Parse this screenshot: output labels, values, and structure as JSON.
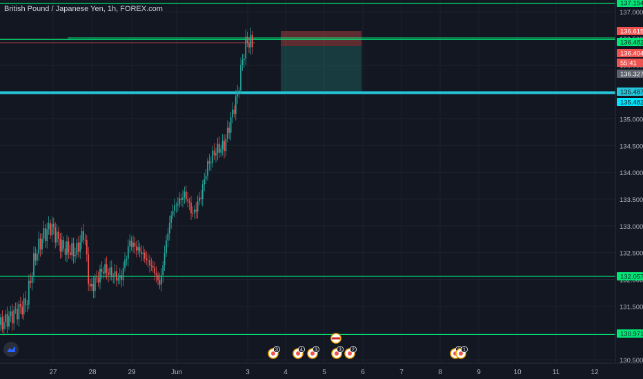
{
  "chart": {
    "title": "British Pound / Japanese Yen, 1h, FOREX.com",
    "y_ticks": [
      "137.000",
      "136.500",
      "136.000",
      "135.500",
      "135.000",
      "134.500",
      "134.000",
      "133.500",
      "133.000",
      "132.500",
      "132.000",
      "131.500",
      "131.000",
      "130.500"
    ],
    "x_ticks": [
      "27",
      "28",
      "29",
      "Jun",
      "3",
      "4",
      "5",
      "6",
      "7",
      "8",
      "9",
      "10",
      "11",
      "12"
    ],
    "price_labels": [
      {
        "text": "137.154",
        "value": 137.154,
        "bg": "#00e676",
        "fg": "#131722"
      },
      {
        "text": "136.615",
        "value": 136.615,
        "bg": "#ef5350",
        "fg": "#ffffff"
      },
      {
        "text": "136.482",
        "value": 136.482,
        "bg": "#00e676",
        "fg": "#131722"
      },
      {
        "text": "136.404",
        "value": 136.404,
        "bg": "#ef5350",
        "fg": "#ffffff"
      },
      {
        "text": "55:41",
        "value": 136.29,
        "bg": "#ef5350",
        "fg": "#ffffff"
      },
      {
        "text": "136.327",
        "value": 136.327,
        "bg": "#5d606b",
        "fg": "#ffffff"
      },
      {
        "text": "135.487",
        "value": 135.487,
        "bg": "#26c6da",
        "fg": "#131722"
      },
      {
        "text": "135.482",
        "value": 135.482,
        "bg": "#00e5ff",
        "fg": "#131722"
      },
      {
        "text": "132.057",
        "value": 132.057,
        "bg": "#00e676",
        "fg": "#131722"
      },
      {
        "text": "130.971",
        "value": 130.971,
        "bg": "#00e676",
        "fg": "#131722"
      }
    ],
    "horizontal_lines": [
      {
        "value": 137.154,
        "color": "#00e676"
      },
      {
        "value": 136.482,
        "color": "#00e676"
      },
      {
        "value": 135.487,
        "color": "#26c6da"
      },
      {
        "value": 132.057,
        "color": "#00e676"
      },
      {
        "value": 130.971,
        "color": "#00e676"
      }
    ],
    "event_markers": [
      {
        "count": "3"
      },
      {
        "count": "4"
      },
      {
        "count": "3"
      },
      {
        "count": "3"
      },
      {
        "count": "2"
      },
      {
        "count": "3"
      },
      {
        "count": "1"
      }
    ],
    "colors": {
      "up": "#26a69a",
      "down": "#ef5350",
      "grid": "#1e222d",
      "axis_text": "#b2b5be"
    }
  }
}
